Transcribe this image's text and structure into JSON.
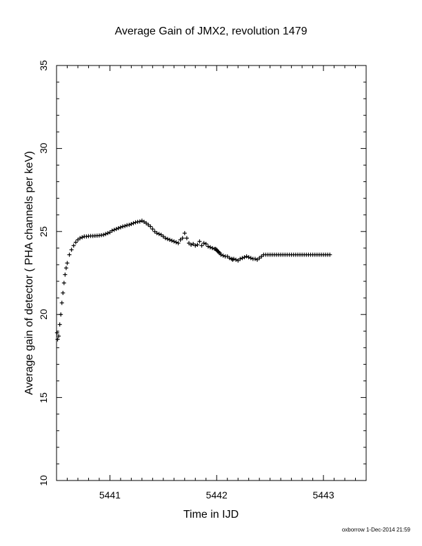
{
  "chart_data": {
    "type": "scatter",
    "title": "Average Gain of JMX2, revolution 1479",
    "xlabel": "Time in IJD",
    "ylabel": "Average gain of detector ( PHA channels per keV)",
    "xlim": [
      5440.5,
      5443.4
    ],
    "ylim": [
      10,
      35
    ],
    "xticks": [
      5441,
      5442,
      5443
    ],
    "yticks": [
      10,
      15,
      20,
      25,
      30,
      35
    ],
    "marker": "plus",
    "grid": false,
    "series": [
      {
        "x": [
          5440.505,
          5440.51,
          5440.52,
          5440.53,
          5440.54,
          5440.55,
          5440.56,
          5440.57,
          5440.58,
          5440.59,
          5440.6,
          5440.62,
          5440.64,
          5440.66,
          5440.68,
          5440.7,
          5440.72,
          5440.74,
          5440.76,
          5440.78,
          5440.8,
          5440.82,
          5440.84,
          5440.86,
          5440.88,
          5440.9,
          5440.92,
          5440.94,
          5440.96,
          5440.98,
          5441.0,
          5441.02,
          5441.04,
          5441.06,
          5441.08,
          5441.1,
          5441.12,
          5441.14,
          5441.16,
          5441.18,
          5441.2,
          5441.22,
          5441.24,
          5441.26,
          5441.28,
          5441.3,
          5441.32,
          5441.34,
          5441.36,
          5441.38,
          5441.4,
          5441.42,
          5441.44,
          5441.46,
          5441.48,
          5441.5,
          5441.52,
          5441.54,
          5441.56,
          5441.58,
          5441.6,
          5441.62,
          5441.64,
          5441.66,
          5441.68,
          5441.7,
          5441.72,
          5441.74,
          5441.76,
          5441.78,
          5441.8,
          5441.82,
          5441.84,
          5441.86,
          5441.88,
          5441.9,
          5441.92,
          5441.94,
          5441.96,
          5441.98,
          5441.99,
          5442.0,
          5442.005,
          5442.01,
          5442.02,
          5442.03,
          5442.04,
          5442.06,
          5442.08,
          5442.1,
          5442.12,
          5442.14,
          5442.15,
          5442.16,
          5442.18,
          5442.2,
          5442.22,
          5442.24,
          5442.26,
          5442.28,
          5442.3,
          5442.32,
          5442.34,
          5442.36,
          5442.38,
          5442.4,
          5442.42,
          5442.44,
          5442.46,
          5442.48,
          5442.5,
          5442.52,
          5442.54,
          5442.56,
          5442.58,
          5442.6,
          5442.62,
          5442.64,
          5442.66,
          5442.68,
          5442.7,
          5442.72,
          5442.74,
          5442.76,
          5442.78,
          5442.8,
          5442.82,
          5442.84,
          5442.86,
          5442.88,
          5442.9,
          5442.92,
          5442.94,
          5442.96,
          5442.98,
          5443.0,
          5443.02,
          5443.04,
          5443.06
        ],
        "y": [
          18.9,
          18.5,
          18.7,
          19.4,
          20.0,
          20.7,
          21.3,
          21.9,
          22.4,
          22.8,
          23.1,
          23.6,
          23.9,
          24.15,
          24.35,
          24.5,
          24.6,
          24.65,
          24.7,
          24.7,
          24.72,
          24.73,
          24.73,
          24.74,
          24.75,
          24.76,
          24.78,
          24.8,
          24.85,
          24.9,
          24.95,
          25.05,
          25.1,
          25.15,
          25.2,
          25.25,
          25.3,
          25.33,
          25.38,
          25.4,
          25.45,
          25.5,
          25.55,
          25.58,
          25.6,
          25.65,
          25.58,
          25.5,
          25.4,
          25.3,
          25.15,
          25.0,
          24.9,
          24.85,
          24.8,
          24.7,
          24.6,
          24.55,
          24.5,
          24.45,
          24.4,
          24.35,
          24.3,
          24.5,
          24.6,
          24.9,
          24.6,
          24.3,
          24.2,
          24.25,
          24.15,
          24.2,
          24.4,
          24.15,
          24.3,
          24.25,
          24.1,
          24.05,
          24.0,
          23.95,
          23.95,
          23.9,
          23.85,
          23.8,
          23.75,
          23.7,
          23.6,
          23.55,
          23.5,
          23.5,
          23.4,
          23.35,
          23.3,
          23.35,
          23.3,
          23.25,
          23.35,
          23.4,
          23.45,
          23.5,
          23.45,
          23.4,
          23.35,
          23.35,
          23.3,
          23.4,
          23.5,
          23.6,
          23.6,
          23.6,
          23.6,
          23.6,
          23.6,
          23.6,
          23.6,
          23.6,
          23.6,
          23.6,
          23.6,
          23.6,
          23.6,
          23.6,
          23.6,
          23.6,
          23.6,
          23.6,
          23.6,
          23.6,
          23.6,
          23.6,
          23.6,
          23.6,
          23.6,
          23.6,
          23.6,
          23.6,
          23.6,
          23.6,
          23.6
        ]
      }
    ]
  },
  "footer": {
    "note": "oxborrow 1-Dec-2014 21:59"
  }
}
